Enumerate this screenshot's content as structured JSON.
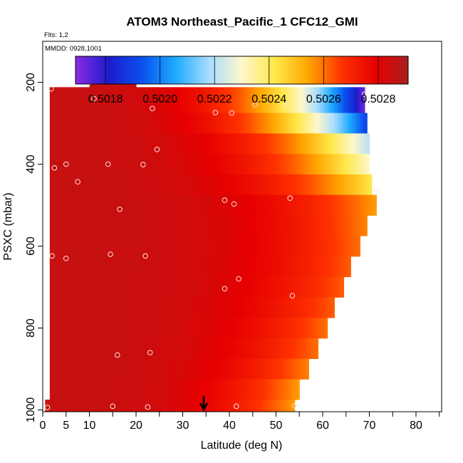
{
  "chart_data": {
    "type": "heatmap",
    "title": "ATOM3 Northeast_Pacific_1 CFC12_GMI",
    "flights_label": "Flts: 1,2",
    "dates_label": "MMDD: 0928,1001",
    "xlabel": "Latitude (deg N)",
    "ylabel": "PSXC (mbar)",
    "xlim": [
      0,
      85
    ],
    "ylim": [
      1000,
      100
    ],
    "x_ticks": [
      0,
      5,
      10,
      20,
      30,
      40,
      50,
      60,
      70,
      80
    ],
    "y_ticks": [
      200,
      400,
      600,
      800,
      1000
    ],
    "colorbar": {
      "min": 0.50169,
      "max": 0.50291,
      "ticks": [
        "0.5018",
        "0.5020",
        "0.5022",
        "0.5024",
        "0.5026",
        "0.5028"
      ],
      "tick_values": [
        0.5018,
        0.502,
        0.5022,
        0.5024,
        0.5026,
        0.5028
      ],
      "colors": [
        "#8a2be2",
        "#1c1ccc",
        "#0a50ee",
        "#1ea9ff",
        "#a6dcff",
        "#fff7cc",
        "#ffe84a",
        "#ffa500",
        "#ff3300",
        "#e60000",
        "#a91f1f"
      ]
    },
    "rows": [
      {
        "p": 200,
        "lat_start": 10,
        "lat_end": 20,
        "v_start": 0.50285,
        "v_end": 0.50285
      },
      {
        "p": 250,
        "lat_start": 1.5,
        "lat_end": 69,
        "v_start": 0.50285,
        "v_end": 0.50172
      },
      {
        "p": 300,
        "lat_start": 1.5,
        "lat_end": 69.5,
        "v_start": 0.50285,
        "v_end": 0.5019
      },
      {
        "p": 350,
        "lat_start": 1.5,
        "lat_end": 70,
        "v_start": 0.50285,
        "v_end": 0.5022
      },
      {
        "p": 400,
        "lat_start": 1.5,
        "lat_end": 70,
        "v_start": 0.50285,
        "v_end": 0.5023
      },
      {
        "p": 450,
        "lat_start": 1.5,
        "lat_end": 70.5,
        "v_start": 0.50285,
        "v_end": 0.50242
      },
      {
        "p": 500,
        "lat_start": 1.5,
        "lat_end": 71.5,
        "v_start": 0.50285,
        "v_end": 0.50255
      },
      {
        "p": 550,
        "lat_start": 1.5,
        "lat_end": 69.5,
        "v_start": 0.50285,
        "v_end": 0.50258
      },
      {
        "p": 600,
        "lat_start": 1.5,
        "lat_end": 68,
        "v_start": 0.50285,
        "v_end": 0.5026
      },
      {
        "p": 650,
        "lat_start": 1.5,
        "lat_end": 66,
        "v_start": 0.50285,
        "v_end": 0.50262
      },
      {
        "p": 700,
        "lat_start": 1.5,
        "lat_end": 64.5,
        "v_start": 0.50285,
        "v_end": 0.50262
      },
      {
        "p": 750,
        "lat_start": 1.5,
        "lat_end": 62.5,
        "v_start": 0.50285,
        "v_end": 0.50262
      },
      {
        "p": 800,
        "lat_start": 1.5,
        "lat_end": 61,
        "v_start": 0.50285,
        "v_end": 0.5026
      },
      {
        "p": 850,
        "lat_start": 1.5,
        "lat_end": 59,
        "v_start": 0.50285,
        "v_end": 0.5026
      },
      {
        "p": 900,
        "lat_start": 1.5,
        "lat_end": 57,
        "v_start": 0.50285,
        "v_end": 0.50258
      },
      {
        "p": 950,
        "lat_start": 1.5,
        "lat_end": 55,
        "v_start": 0.50285,
        "v_end": 0.50255
      },
      {
        "p": 1000,
        "lat_start": 0.5,
        "lat_end": 54,
        "v_start": 0.50285,
        "v_end": 0.50255
      }
    ],
    "obs_points": [
      [
        10,
        200
      ],
      [
        20,
        197
      ],
      [
        1.8,
        216
      ],
      [
        11,
        240
      ],
      [
        69,
        229
      ],
      [
        23.5,
        264
      ],
      [
        37,
        274
      ],
      [
        40.5,
        275
      ],
      [
        45.5,
        255
      ],
      [
        52,
        255
      ],
      [
        24.5,
        364
      ],
      [
        2.5,
        409
      ],
      [
        5,
        400
      ],
      [
        14,
        400
      ],
      [
        21.5,
        401
      ],
      [
        7.5,
        443
      ],
      [
        71.5,
        462
      ],
      [
        39,
        488
      ],
      [
        41,
        497
      ],
      [
        53,
        483
      ],
      [
        16.5,
        510
      ],
      [
        2,
        624
      ],
      [
        5,
        630
      ],
      [
        14.5,
        620
      ],
      [
        22,
        624
      ],
      [
        42,
        680
      ],
      [
        39,
        704
      ],
      [
        53.5,
        721
      ],
      [
        16,
        866
      ],
      [
        23,
        860
      ],
      [
        1,
        994
      ],
      [
        15,
        991
      ],
      [
        22.5,
        993
      ],
      [
        41.5,
        991
      ],
      [
        54,
        990
      ]
    ],
    "arrow_lat": 34.5
  }
}
